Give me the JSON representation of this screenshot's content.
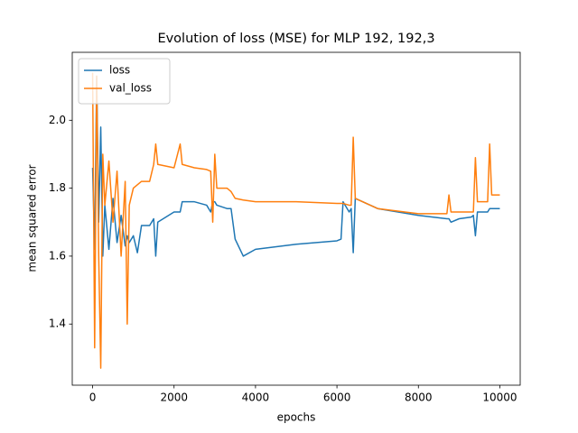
{
  "chart_data": {
    "type": "line",
    "title": "Evolution of loss (MSE) for MLP 192, 192,3",
    "x_label": "epochs",
    "y_label": "mean squared error",
    "x": [
      0,
      50,
      100,
      150,
      200,
      250,
      300,
      400,
      500,
      600,
      700,
      800,
      850,
      900,
      1000,
      1100,
      1200,
      1400,
      1500,
      1550,
      1600,
      2000,
      2150,
      2200,
      2500,
      2800,
      2900,
      2950,
      3000,
      3050,
      3300,
      3400,
      3500,
      3700,
      4000,
      5000,
      6000,
      6100,
      6150,
      6300,
      6350,
      6400,
      6450,
      7000,
      8000,
      8700,
      8750,
      8800,
      9000,
      9300,
      9350,
      9400,
      9450,
      9700,
      9750,
      9800,
      10000
    ],
    "series": [
      {
        "name": "loss",
        "color": "#1f77b4",
        "values": [
          1.86,
          1.62,
          2.13,
          1.7,
          1.98,
          1.6,
          1.75,
          1.62,
          1.77,
          1.64,
          1.72,
          1.63,
          1.66,
          1.64,
          1.66,
          1.61,
          1.69,
          1.69,
          1.71,
          1.6,
          1.7,
          1.73,
          1.73,
          1.76,
          1.76,
          1.75,
          1.73,
          1.76,
          1.76,
          1.75,
          1.74,
          1.74,
          1.65,
          1.6,
          1.62,
          1.635,
          1.645,
          1.65,
          1.76,
          1.73,
          1.74,
          1.61,
          1.77,
          1.74,
          1.72,
          1.71,
          1.71,
          1.7,
          1.71,
          1.715,
          1.72,
          1.66,
          1.73,
          1.73,
          1.74,
          1.74,
          1.74
        ]
      },
      {
        "name": "val_loss",
        "color": "#ff7f0e",
        "values": [
          2.14,
          1.33,
          2.13,
          1.6,
          1.27,
          1.9,
          1.75,
          1.88,
          1.7,
          1.85,
          1.6,
          1.82,
          1.4,
          1.75,
          1.8,
          1.81,
          1.82,
          1.82,
          1.87,
          1.93,
          1.87,
          1.86,
          1.93,
          1.87,
          1.86,
          1.855,
          1.85,
          1.7,
          1.9,
          1.8,
          1.8,
          1.79,
          1.77,
          1.765,
          1.76,
          1.76,
          1.755,
          1.755,
          1.755,
          1.75,
          1.75,
          1.95,
          1.77,
          1.74,
          1.725,
          1.725,
          1.78,
          1.73,
          1.73,
          1.73,
          1.73,
          1.89,
          1.76,
          1.76,
          1.93,
          1.78,
          1.78
        ]
      }
    ],
    "xlim": [
      -500,
      10500
    ],
    "xticks": [
      0,
      2000,
      4000,
      6000,
      8000,
      10000
    ],
    "ylim": [
      1.22,
      2.2
    ],
    "yticks": [
      1.4,
      1.6,
      1.8,
      {
        "value": 2,
        "label": "2.0"
      }
    ],
    "grid": false,
    "legend": "upper left"
  }
}
